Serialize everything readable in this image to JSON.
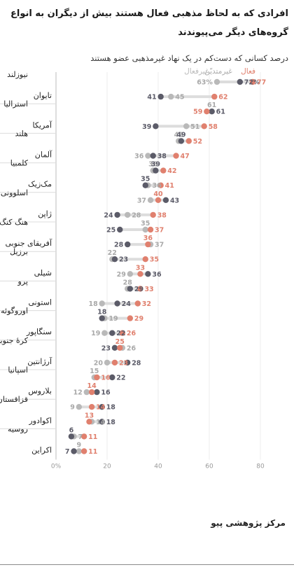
{
  "title": "افرادی که به لحاظ مذهبی فعال هستند بیش از دیگران به انواع گروه‌های دیگر می‌پیوندند",
  "subtitle": "درصد کسانی که دست‌کم در یک نهاد غیرمذهبی عضو هستند",
  "source": "مرکز پژوهشی پیو",
  "colors": {
    "active": "#e0806e",
    "inactive": "#b9b9b9",
    "unaffiliated": "#5b5b68",
    "connector": "#dddddd"
  },
  "chart_data": {
    "type": "dot",
    "xlim": [
      0,
      80
    ],
    "x_ticks": [
      0,
      20,
      40,
      60,
      80
    ],
    "x_tick_labels": [
      "0%",
      "20",
      "40",
      "60",
      "80"
    ],
    "legend": {
      "active": "فعال",
      "inactive": "غیرمتدیّن",
      "unaffiliated": "غیرفعال"
    },
    "rows": [
      {
        "country": "نیوزلند",
        "active": 77,
        "inactive": 63,
        "unaffiliated": 72,
        "labels": {
          "active": "77",
          "inactive": "63%",
          "unaffiliated": "72%"
        }
      },
      {
        "country": "تایوان",
        "active": 62,
        "inactive": 45,
        "unaffiliated": 41,
        "labels": {
          "active": "62",
          "inactive": "45",
          "unaffiliated": "41"
        }
      },
      {
        "country": "استرالیا",
        "active": 59,
        "inactive": 61,
        "unaffiliated": 61,
        "labels": {
          "active": "59",
          "inactive": "61",
          "unaffiliated": "61"
        }
      },
      {
        "country": "آمریکا",
        "active": 58,
        "inactive": 51,
        "unaffiliated": 39,
        "labels": {
          "active": "58",
          "inactive": "51",
          "unaffiliated": "39"
        }
      },
      {
        "country": "هلند",
        "active": 52,
        "inactive": 48,
        "unaffiliated": 49,
        "labels": {
          "active": "52",
          "inactive": "48",
          "unaffiliated": "49"
        }
      },
      {
        "country": "آلمان",
        "active": 47,
        "inactive": 36,
        "unaffiliated": 38,
        "labels": {
          "active": "47",
          "inactive": "36",
          "unaffiliated": "38"
        }
      },
      {
        "country": "کلمبیا",
        "active": 42,
        "inactive": 38,
        "unaffiliated": 39,
        "labels": {
          "active": "42",
          "inactive": "38",
          "unaffiliated": "39"
        }
      },
      {
        "country": "مک‌زیک",
        "active": 41,
        "inactive": 36,
        "unaffiliated": 35,
        "labels": {
          "active": "41",
          "inactive": "36",
          "unaffiliated": "35"
        }
      },
      {
        "country": "اسلوونی",
        "active": 40,
        "inactive": 37,
        "unaffiliated": 43,
        "labels": {
          "active": "40",
          "inactive": "37",
          "unaffiliated": "43"
        }
      },
      {
        "country": "ژاپن",
        "active": 38,
        "inactive": 28,
        "unaffiliated": 24,
        "labels": {
          "active": "38",
          "inactive": "28",
          "unaffiliated": "24"
        }
      },
      {
        "country": "هنگ کنگ",
        "active": 37,
        "inactive": 35,
        "unaffiliated": 25,
        "labels": {
          "active": "37",
          "inactive": "35",
          "unaffiliated": "25"
        }
      },
      {
        "country": "آفریقای جنوبی",
        "active": 36,
        "inactive": 37,
        "unaffiliated": 28,
        "labels": {
          "active": "36",
          "inactive": "37",
          "unaffiliated": "28"
        }
      },
      {
        "country": "برزیل",
        "active": 35,
        "inactive": 22,
        "unaffiliated": 23,
        "labels": {
          "active": "35",
          "inactive": "22",
          "unaffiliated": "23"
        }
      },
      {
        "country": "شیلی",
        "active": 33,
        "inactive": 29,
        "unaffiliated": 36,
        "labels": {
          "active": "33",
          "inactive": "29",
          "unaffiliated": "36"
        }
      },
      {
        "country": "پرو",
        "active": 33,
        "inactive": 28,
        "unaffiliated": 29,
        "labels": {
          "active": "33",
          "inactive": "28",
          "unaffiliated": "29"
        }
      },
      {
        "country": "استونی",
        "active": 32,
        "inactive": 18,
        "unaffiliated": 24,
        "labels": {
          "active": "32",
          "inactive": "18",
          "unaffiliated": "24"
        }
      },
      {
        "country": "اوروگوئه",
        "active": 29,
        "inactive": 19,
        "unaffiliated": 18,
        "labels": {
          "active": "29",
          "inactive": "19",
          "unaffiliated": "18"
        }
      },
      {
        "country": "سنگاپور",
        "active": 26,
        "inactive": 19,
        "unaffiliated": 22,
        "labels": {
          "active": "26",
          "inactive": "19",
          "unaffiliated": "22"
        }
      },
      {
        "country": "کرهٔ جنوبی",
        "active": 25,
        "inactive": 26,
        "unaffiliated": 23,
        "labels": {
          "active": "25",
          "inactive": "26",
          "unaffiliated": "23"
        }
      },
      {
        "country": "آرژانتین",
        "active": 23,
        "inactive": 20,
        "unaffiliated": 28,
        "labels": {
          "active": "23",
          "inactive": "20",
          "unaffiliated": "28"
        }
      },
      {
        "country": "اسپانیا",
        "active": 16,
        "inactive": 15,
        "unaffiliated": 22,
        "labels": {
          "active": "16",
          "inactive": "15",
          "unaffiliated": "22"
        }
      },
      {
        "country": "بلاروس",
        "active": 14,
        "inactive": 12,
        "unaffiliated": 16,
        "labels": {
          "active": "14",
          "inactive": "12",
          "unaffiliated": "16"
        }
      },
      {
        "country": "قزاقستان",
        "active": 14,
        "inactive": 9,
        "unaffiliated": 18,
        "labels": {
          "active": "14",
          "inactive": "9",
          "unaffiliated": "18"
        }
      },
      {
        "country": "اکوادور",
        "active": 13,
        "inactive": 14,
        "unaffiliated": 18,
        "labels": {
          "active": "13",
          "inactive": "14",
          "unaffiliated": "18"
        }
      },
      {
        "country": "روسیه",
        "active": 11,
        "inactive": 7,
        "unaffiliated": 6,
        "labels": {
          "active": "11",
          "inactive": "7",
          "unaffiliated": "6"
        }
      },
      {
        "country": "اکراین",
        "active": 11,
        "inactive": 9,
        "unaffiliated": 7,
        "labels": {
          "active": "11",
          "inactive": "9",
          "unaffiliated": "7"
        }
      }
    ]
  }
}
